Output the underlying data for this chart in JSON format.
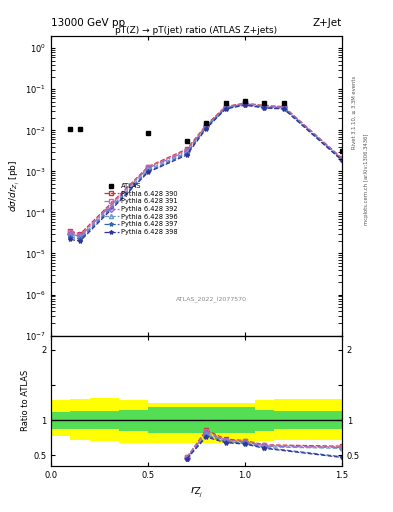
{
  "title_main": "pT(Z) → pT(jet) ratio (ATLAS Z+jets)",
  "header_left": "13000 GeV pp",
  "header_right": "Z+Jet",
  "ylabel_main": "dσ/dr$_{Z_j}$ [pb]",
  "ylabel_ratio": "Ratio to ATLAS",
  "xlabel": "r$_{Z_j}$",
  "watermark": "ATLAS_2022_I2077570",
  "right_label": "mcplots.cern.ch [arXiv:1306.3436]",
  "right_label2": "Rivet 3.1.10, ≥ 3.3M events",
  "x_atlas": [
    0.1,
    0.15,
    0.5,
    0.7,
    0.8,
    0.9,
    1.0,
    1.1,
    1.2,
    1.5
  ],
  "y_atlas": [
    0.0105,
    0.0105,
    0.0085,
    0.0055,
    0.015,
    0.045,
    0.052,
    0.045,
    0.045,
    0.0032
  ],
  "x_mc": [
    0.1,
    0.15,
    0.5,
    0.7,
    0.8,
    0.9,
    1.0,
    1.1,
    1.2,
    1.5
  ],
  "mc_data": [
    {
      "label": "Pythia 6.428 390",
      "color": "#cc3333",
      "ls": "--",
      "marker": "s",
      "mfc": "none",
      "y": [
        3.5e-05,
        3e-05,
        0.0013,
        0.0035,
        0.0135,
        0.038,
        0.046,
        0.04,
        0.038,
        0.0021
      ]
    },
    {
      "label": "Pythia 6.428 391",
      "color": "#cc66aa",
      "ls": "--",
      "marker": "s",
      "mfc": "none",
      "y": [
        3.3e-05,
        2.8e-05,
        0.00125,
        0.0033,
        0.013,
        0.037,
        0.045,
        0.039,
        0.037,
        0.00205
      ]
    },
    {
      "label": "Pythia 6.428 392",
      "color": "#9966cc",
      "ls": "-.",
      "marker": "D",
      "mfc": "none",
      "y": [
        3e-05,
        2.6e-05,
        0.0012,
        0.0031,
        0.0125,
        0.036,
        0.044,
        0.038,
        0.036,
        0.002
      ]
    },
    {
      "label": "Pythia 6.428 396",
      "color": "#6699cc",
      "ls": "--",
      "marker": "^",
      "mfc": "none",
      "y": [
        2.8e-05,
        2.4e-05,
        0.0011,
        0.0029,
        0.012,
        0.035,
        0.043,
        0.037,
        0.035,
        0.00195
      ]
    },
    {
      "label": "Pythia 6.428 397",
      "color": "#3366aa",
      "ls": "--",
      "marker": "*",
      "mfc": "none",
      "y": [
        2.5e-05,
        2.2e-05,
        0.001,
        0.0027,
        0.0115,
        0.034,
        0.042,
        0.036,
        0.034,
        0.0019
      ]
    },
    {
      "label": "Pythia 6.428 398",
      "color": "#333399",
      "ls": "--",
      "marker": "*",
      "mfc": "none",
      "y": [
        2.2e-05,
        2e-05,
        0.00095,
        0.0025,
        0.011,
        0.033,
        0.041,
        0.035,
        0.033,
        0.00185
      ]
    }
  ],
  "xlim": [
    0,
    1.5
  ],
  "ylim_main": [
    1e-07,
    2.0
  ],
  "ylim_ratio": [
    0.35,
    2.2
  ],
  "band_edges": [
    0.0,
    0.1,
    0.2,
    0.35,
    0.5,
    0.65,
    0.75,
    1.05,
    1.15,
    1.5
  ],
  "yellow_low": [
    0.78,
    0.72,
    0.7,
    0.68,
    0.68,
    0.68,
    0.68,
    0.7,
    0.72,
    0.72
  ],
  "yellow_high": [
    1.28,
    1.3,
    1.32,
    1.28,
    1.25,
    1.25,
    1.25,
    1.28,
    1.3,
    1.3
  ],
  "green_low": [
    0.88,
    0.87,
    0.87,
    0.85,
    0.82,
    0.82,
    0.82,
    0.85,
    0.87,
    0.87
  ],
  "green_high": [
    1.12,
    1.13,
    1.13,
    1.15,
    1.18,
    1.18,
    1.18,
    1.15,
    1.13,
    1.13
  ],
  "ratio_x": [
    0.7,
    0.8,
    0.9,
    1.0,
    1.1,
    1.5
  ],
  "ratio_mc": [
    {
      "y": [
        0.47,
        0.86,
        0.73,
        0.71,
        0.65,
        0.63
      ]
    },
    {
      "y": [
        0.47,
        0.84,
        0.72,
        0.7,
        0.64,
        0.62
      ]
    },
    {
      "y": [
        0.46,
        0.82,
        0.71,
        0.69,
        0.63,
        0.61
      ]
    },
    {
      "y": [
        0.46,
        0.8,
        0.7,
        0.68,
        0.62,
        0.6
      ]
    },
    {
      "y": [
        0.45,
        0.78,
        0.69,
        0.67,
        0.61,
        0.48
      ]
    },
    {
      "y": [
        0.45,
        0.76,
        0.68,
        0.66,
        0.6,
        0.47
      ]
    }
  ]
}
